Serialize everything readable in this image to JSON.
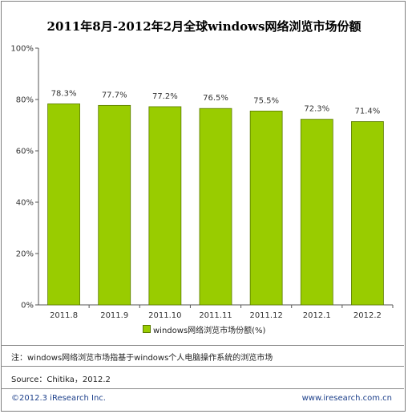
{
  "colors": {
    "bar": "#99cc00",
    "bar_edge": "#5a7a00",
    "axis": "#555555",
    "frame": "#7f7f7f",
    "credit": "#1c3f8a"
  },
  "footnote": {
    "note": "注：windows网络浏览市场指基于windows个人电脑操作系统的浏览市场",
    "source": "Source：Chitika，2012.2"
  },
  "credits": {
    "left": "©2012.3  iResearch Inc.",
    "right": "www.iresearch.com.cn"
  },
  "chart_data": {
    "type": "bar",
    "title": "2011年8月-2012年2月全球windows网络浏览市场份额",
    "categories": [
      "2011.8",
      "2011.9",
      "2011.10",
      "2011.11",
      "2011.12",
      "2012.1",
      "2012.2"
    ],
    "series": [
      {
        "name": "windows网络浏览市场份额(%)",
        "values": [
          78.3,
          77.7,
          77.2,
          76.5,
          75.5,
          72.3,
          71.4
        ],
        "labels": [
          "78.3%",
          "77.7%",
          "77.2%",
          "76.5%",
          "75.5%",
          "72.3%",
          "71.4%"
        ]
      }
    ],
    "yticks": [
      "0%",
      "20%",
      "40%",
      "60%",
      "80%",
      "100%"
    ],
    "ytick_values": [
      0,
      20,
      40,
      60,
      80,
      100
    ],
    "ylim": [
      0,
      100
    ],
    "grid": false,
    "legend": "bottom"
  }
}
